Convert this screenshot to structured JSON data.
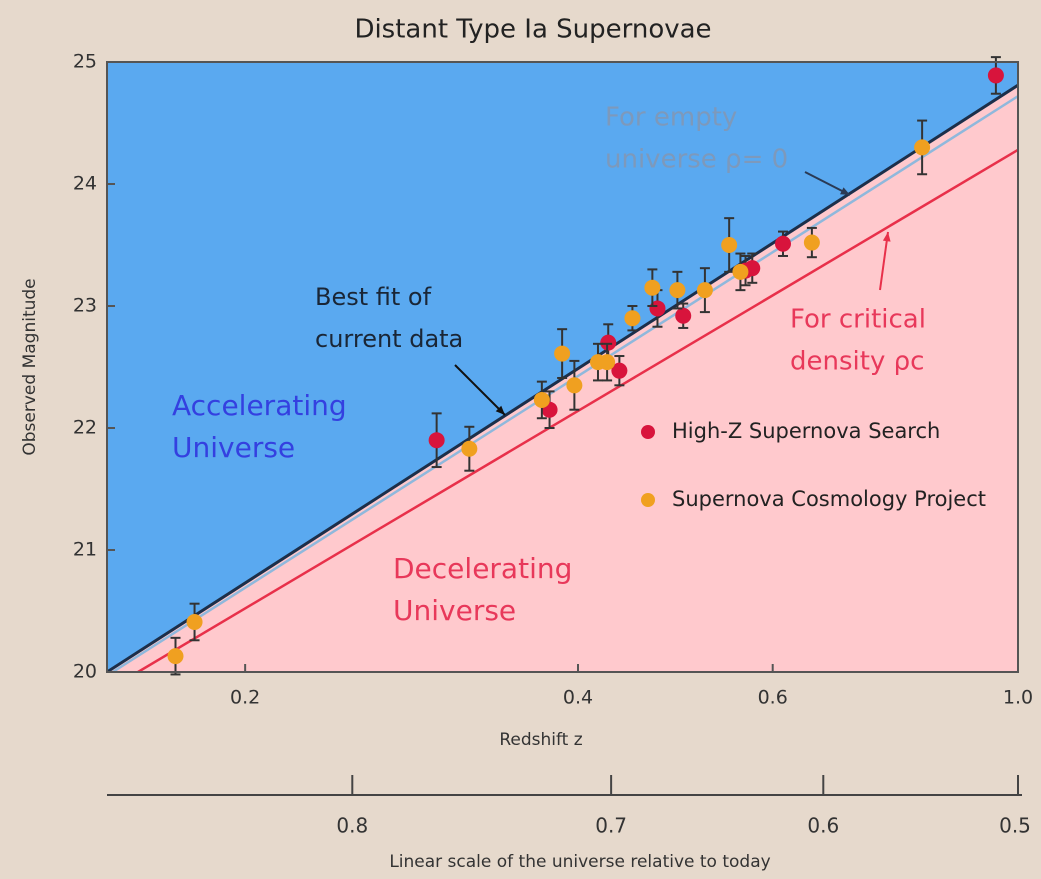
{
  "chart_data": {
    "type": "scatter",
    "title": "Distant Type Ia Supernovae",
    "xlabel": "Redshift z",
    "ylabel": "Observed Magnitude",
    "xscale": "log",
    "xlim": [
      0.15,
      1
    ],
    "xticks": [
      0.2,
      0.4,
      0.6,
      {
        "value": 1,
        "label": "1.0"
      }
    ],
    "ylim": [
      20,
      25
    ],
    "yticks": [
      20,
      21,
      22,
      23,
      24,
      25
    ],
    "x2label": "Linear scale of the universe relative to today",
    "x2ticks": [
      0.8,
      0.7,
      0.6,
      0.5
    ],
    "legend": "center right",
    "fills": {
      "above": "#5aa9f0",
      "below": "#ffc9cd"
    },
    "series": [
      {
        "name": "High-Z Supernova Search",
        "color": "#d8143c",
        "x": [
          0.298,
          0.377,
          0.426,
          0.436,
          0.472,
          0.498,
          0.567,
          0.575,
          0.613,
          0.955
        ],
        "values": [
          21.9,
          22.15,
          22.7,
          22.47,
          22.98,
          22.92,
          23.29,
          23.31,
          23.51,
          24.89
        ],
        "errors": [
          0.22,
          0.15,
          0.15,
          0.12,
          0.15,
          0.1,
          0.12,
          0.12,
          0.1,
          0.15
        ]
      },
      {
        "name": "Supernova Cosmology Project",
        "color": "#f0a020",
        "x": [
          0.173,
          0.18,
          0.319,
          0.371,
          0.387,
          0.397,
          0.417,
          0.425,
          0.448,
          0.467,
          0.492,
          0.521,
          0.548,
          0.561,
          0.651,
          0.819
        ],
        "values": [
          20.13,
          20.41,
          21.83,
          22.23,
          22.61,
          22.35,
          22.54,
          22.54,
          22.9,
          23.15,
          23.13,
          23.13,
          23.5,
          23.28,
          23.52,
          24.3
        ],
        "errors": [
          0.15,
          0.15,
          0.18,
          0.15,
          0.2,
          0.2,
          0.15,
          0.15,
          0.1,
          0.15,
          0.15,
          0.18,
          0.22,
          0.15,
          0.12,
          0.22
        ]
      }
    ],
    "lines": [
      {
        "color": "#8fb8dc",
        "x": [
          0.15,
          1
        ],
        "values": [
          19.97,
          24.72
        ]
      },
      {
        "color": "#1c2f4a",
        "x": [
          0.15,
          1
        ],
        "values": [
          20,
          24.81
        ]
      },
      {
        "color": "#e8304a",
        "x": [
          0.16,
          1
        ],
        "values": [
          20,
          24.28
        ]
      }
    ],
    "annotations": [
      {
        "lines": [
          "For empty",
          "universe ρ= 0"
        ],
        "color": "#7d99bb"
      },
      {
        "lines": [
          "Best fit of",
          "current data"
        ],
        "color": "#1a2636"
      },
      {
        "lines": [
          "For critical",
          "density ρc"
        ],
        "color": "#e8385a"
      },
      {
        "lines": [
          "Accelerating",
          "Universe"
        ],
        "color": "#3440e0"
      },
      {
        "lines": [
          "Decelerating",
          "Universe"
        ],
        "color": "#e8385a"
      }
    ]
  }
}
